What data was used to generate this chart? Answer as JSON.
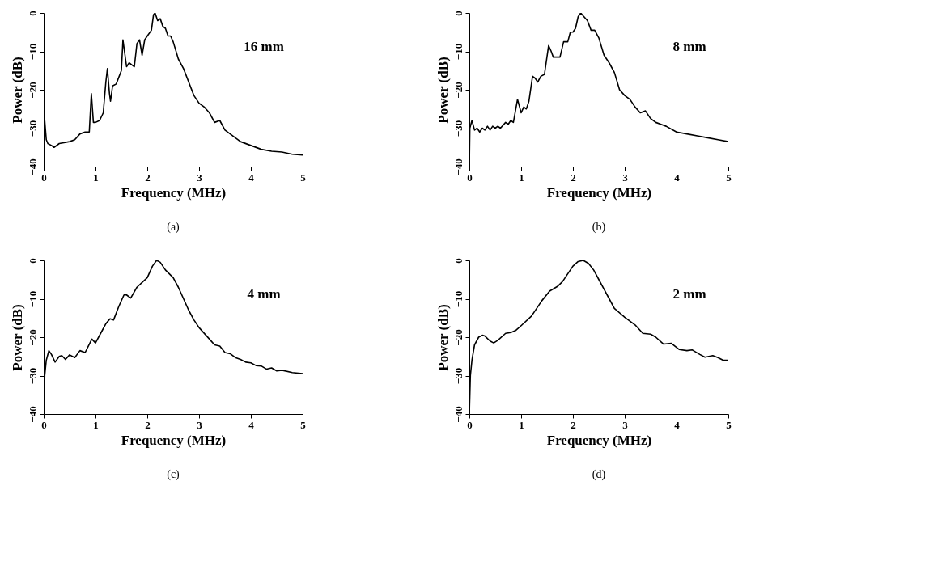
{
  "chart_data": [
    {
      "type": "line",
      "xlabel": "Frequency (MHz)",
      "ylabel": "Power (dB)",
      "annotations": [
        "16 mm",
        "(a)"
      ],
      "xlim": [
        0,
        5
      ],
      "ylim": [
        -40,
        0
      ],
      "xticks": [
        0,
        1,
        2,
        3,
        4,
        5
      ],
      "yticks": [
        -40,
        -30,
        -20,
        -10,
        0
      ],
      "grid": false,
      "marker": "none",
      "line_style": "solid",
      "series": [
        {
          "color": "#000000",
          "x": [
            0.0,
            0.02,
            0.05,
            0.08,
            0.15,
            0.2,
            0.3,
            0.5,
            0.6,
            0.7,
            0.8,
            0.88,
            0.92,
            0.96,
            1.0,
            1.08,
            1.15,
            1.2,
            1.23,
            1.27,
            1.29,
            1.33,
            1.4,
            1.5,
            1.53,
            1.57,
            1.6,
            1.65,
            1.7,
            1.75,
            1.8,
            1.85,
            1.9,
            1.95,
            2.0,
            2.08,
            2.12,
            2.15,
            2.2,
            2.25,
            2.3,
            2.35,
            2.4,
            2.45,
            2.5,
            2.6,
            2.7,
            2.8,
            2.9,
            3.0,
            3.1,
            3.2,
            3.3,
            3.4,
            3.5,
            3.6,
            3.7,
            3.8,
            4.0,
            4.2,
            4.4,
            4.6,
            4.8,
            5.0
          ],
          "values": [
            -40,
            -28,
            -33,
            -34,
            -34.5,
            -35,
            -34,
            -33.5,
            -33,
            -31.5,
            -31,
            -31,
            -21,
            -28.5,
            -28.5,
            -28,
            -26,
            -18,
            -14.5,
            -21,
            -23,
            -19,
            -18.5,
            -15,
            -7,
            -11,
            -14,
            -13,
            -13.5,
            -14,
            -8,
            -7,
            -11,
            -7,
            -6,
            -4.5,
            -0.5,
            0,
            -2,
            -1.5,
            -3.5,
            -4,
            -6,
            -6,
            -7.5,
            -12,
            -14.5,
            -18,
            -21.5,
            -23.5,
            -24.5,
            -26,
            -28.5,
            -28,
            -30.5,
            -31.5,
            -32.5,
            -33.5,
            -34.5,
            -35.5,
            -36,
            -36.2,
            -36.8,
            -37
          ]
        }
      ]
    },
    {
      "type": "line",
      "xlabel": "Frequency (MHz)",
      "ylabel": "Power (dB)",
      "annotations": [
        "8 mm",
        "(b)"
      ],
      "xlim": [
        0,
        5
      ],
      "ylim": [
        -40,
        0
      ],
      "xticks": [
        0,
        1,
        2,
        3,
        4,
        5
      ],
      "yticks": [
        -40,
        -30,
        -20,
        -10,
        0
      ],
      "grid": false,
      "marker": "none",
      "line_style": "solid",
      "series": [
        {
          "color": "#000000",
          "x": [
            0,
            0.01,
            0.05,
            0.1,
            0.15,
            0.2,
            0.25,
            0.3,
            0.35,
            0.4,
            0.45,
            0.5,
            0.55,
            0.6,
            0.7,
            0.75,
            0.8,
            0.85,
            0.93,
            1.0,
            1.05,
            1.1,
            1.15,
            1.22,
            1.27,
            1.32,
            1.38,
            1.45,
            1.53,
            1.58,
            1.62,
            1.7,
            1.75,
            1.82,
            1.9,
            1.95,
            2.0,
            2.05,
            2.1,
            2.15,
            2.2,
            2.28,
            2.35,
            2.42,
            2.5,
            2.6,
            2.7,
            2.8,
            2.9,
            3.0,
            3.1,
            3.2,
            3.3,
            3.4,
            3.5,
            3.6,
            3.7,
            3.8,
            4.0,
            4.2,
            4.4,
            4.6,
            4.8,
            5.0
          ],
          "values": [
            -40,
            -30,
            -28,
            -30.5,
            -30,
            -31,
            -30,
            -30.5,
            -29.5,
            -30.5,
            -29.5,
            -30,
            -29.5,
            -30,
            -28.5,
            -29,
            -28,
            -28.5,
            -22.5,
            -26,
            -24.5,
            -25,
            -23,
            -16.5,
            -17,
            -18,
            -16.5,
            -16,
            -8.5,
            -10,
            -11.5,
            -11.5,
            -11.5,
            -7.5,
            -7.5,
            -5,
            -5,
            -4,
            -1,
            0,
            -0.8,
            -2,
            -4.5,
            -4.5,
            -6.5,
            -11,
            -13,
            -15.5,
            -20,
            -21.5,
            -22.5,
            -24.5,
            -26,
            -25.5,
            -27.5,
            -28.5,
            -29,
            -29.5,
            -31,
            -31.5,
            -32,
            -32.5,
            -33,
            -33.5
          ]
        }
      ]
    },
    {
      "type": "line",
      "xlabel": "Frequency (MHz)",
      "ylabel": "Power (dB)",
      "annotations": [
        "4 mm",
        "(c)"
      ],
      "xlim": [
        0,
        5
      ],
      "ylim": [
        -40,
        0
      ],
      "xticks": [
        0,
        1,
        2,
        3,
        4,
        5
      ],
      "yticks": [
        -40,
        -30,
        -20,
        -10,
        0
      ],
      "grid": false,
      "marker": "none",
      "line_style": "solid",
      "series": [
        {
          "color": "#000000",
          "x": [
            0,
            0.02,
            0.05,
            0.1,
            0.15,
            0.22,
            0.3,
            0.35,
            0.42,
            0.5,
            0.6,
            0.7,
            0.8,
            0.93,
            1.0,
            1.1,
            1.2,
            1.28,
            1.35,
            1.45,
            1.55,
            1.6,
            1.68,
            1.8,
            2.0,
            2.1,
            2.18,
            2.25,
            2.35,
            2.5,
            2.6,
            2.7,
            2.8,
            2.9,
            3.0,
            3.2,
            3.3,
            3.4,
            3.5,
            3.6,
            3.7,
            3.8,
            3.9,
            4.0,
            4.1,
            4.2,
            4.3,
            4.4,
            4.5,
            4.6,
            4.8,
            5.0
          ],
          "values": [
            -40,
            -30,
            -26,
            -23.5,
            -24.5,
            -26.5,
            -25,
            -24.8,
            -25.8,
            -24.6,
            -25.3,
            -23.5,
            -24,
            -20.5,
            -21.5,
            -19,
            -16.5,
            -15.2,
            -15.5,
            -12,
            -9,
            -9,
            -9.8,
            -7,
            -4.5,
            -1.5,
            0,
            -0.5,
            -2.5,
            -4.5,
            -7,
            -10,
            -13,
            -15.5,
            -17.5,
            -20.5,
            -22,
            -22.3,
            -24,
            -24.3,
            -25.3,
            -25.8,
            -26.5,
            -26.7,
            -27.4,
            -27.5,
            -28.3,
            -28,
            -28.8,
            -28.6,
            -29.2,
            -29.5
          ]
        }
      ]
    },
    {
      "type": "line",
      "xlabel": "Frequency (MHz)",
      "ylabel": "Power (dB)",
      "annotations": [
        "2 mm",
        "(d)"
      ],
      "xlim": [
        0,
        5
      ],
      "ylim": [
        -40,
        0
      ],
      "xticks": [
        0,
        1,
        2,
        3,
        4,
        5
      ],
      "yticks": [
        -40,
        -30,
        -20,
        -10,
        0
      ],
      "grid": false,
      "marker": "none",
      "line_style": "solid",
      "series": [
        {
          "color": "#000000",
          "x": [
            0,
            0.02,
            0.05,
            0.1,
            0.18,
            0.25,
            0.3,
            0.4,
            0.47,
            0.55,
            0.7,
            0.8,
            0.9,
            1.0,
            1.2,
            1.4,
            1.55,
            1.7,
            1.8,
            1.9,
            2.0,
            2.1,
            2.2,
            2.3,
            2.4,
            2.5,
            2.6,
            2.7,
            2.8,
            3.0,
            3.2,
            3.35,
            3.5,
            3.6,
            3.75,
            3.9,
            4.05,
            4.2,
            4.3,
            4.45,
            4.55,
            4.7,
            4.8,
            4.9,
            5.0
          ],
          "values": [
            -40,
            -30,
            -26,
            -22,
            -20,
            -19.5,
            -19.7,
            -21,
            -21.5,
            -20.8,
            -19,
            -18.8,
            -18.2,
            -17,
            -14.5,
            -10.5,
            -8,
            -6.8,
            -5.5,
            -3.5,
            -1.5,
            -0.3,
            0,
            -0.8,
            -2.5,
            -5,
            -7.5,
            -10,
            -12.5,
            -14.8,
            -16.8,
            -19,
            -19.2,
            -20,
            -21.8,
            -21.6,
            -23.2,
            -23.5,
            -23.3,
            -24.5,
            -25.2,
            -24.8,
            -25.3,
            -26,
            -26
          ]
        }
      ]
    }
  ]
}
